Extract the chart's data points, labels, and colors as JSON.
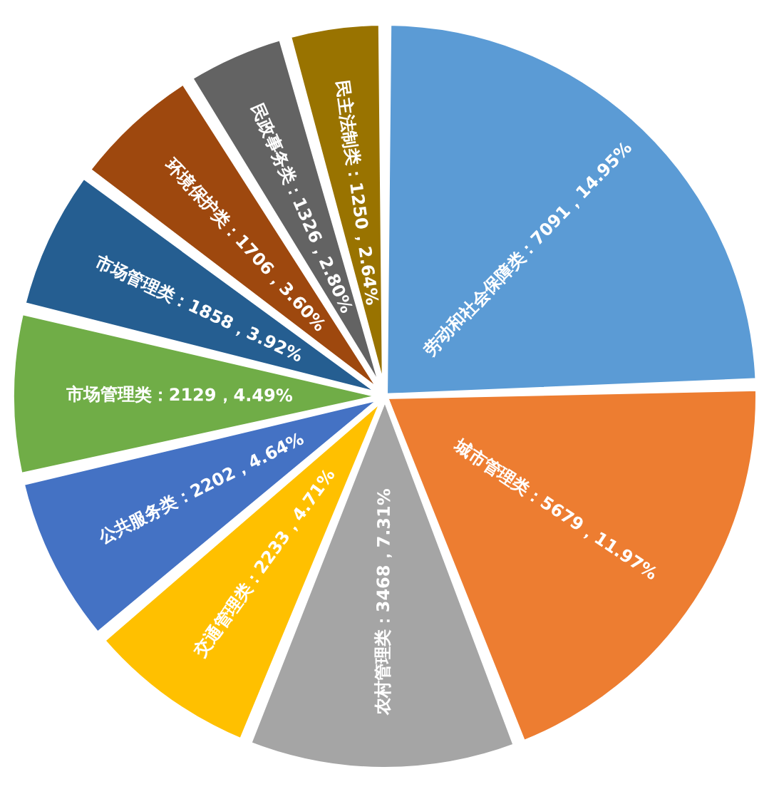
{
  "chart_data": {
    "type": "pie",
    "categories": [
      "劳动和社会保障类",
      "城市管理类",
      "农村管理类",
      "交通管理类",
      "公共服务类",
      "市场管理类",
      "市场管理类",
      "环境保护类",
      "民政事务类",
      "民主法制类"
    ],
    "values": [
      7091,
      5679,
      3468,
      2233,
      2202,
      2129,
      1858,
      1706,
      1326,
      1250
    ],
    "value_labels": [
      "7091，14.95%",
      "5679，11.97%",
      "3468，7.31%",
      "2233，4.71%",
      "2202，4.64%",
      "2129，4.49%",
      "1858，3.92%",
      "1706，3.60%",
      "1326，2.80%",
      "1250，2.64%"
    ],
    "colors": [
      "#5b9bd5",
      "#ed7d31",
      "#a5a5a5",
      "#ffc000",
      "#4472c4",
      "#70ad47",
      "#255e91",
      "#9e480e",
      "#636363",
      "#997300"
    ],
    "legend": false
  }
}
